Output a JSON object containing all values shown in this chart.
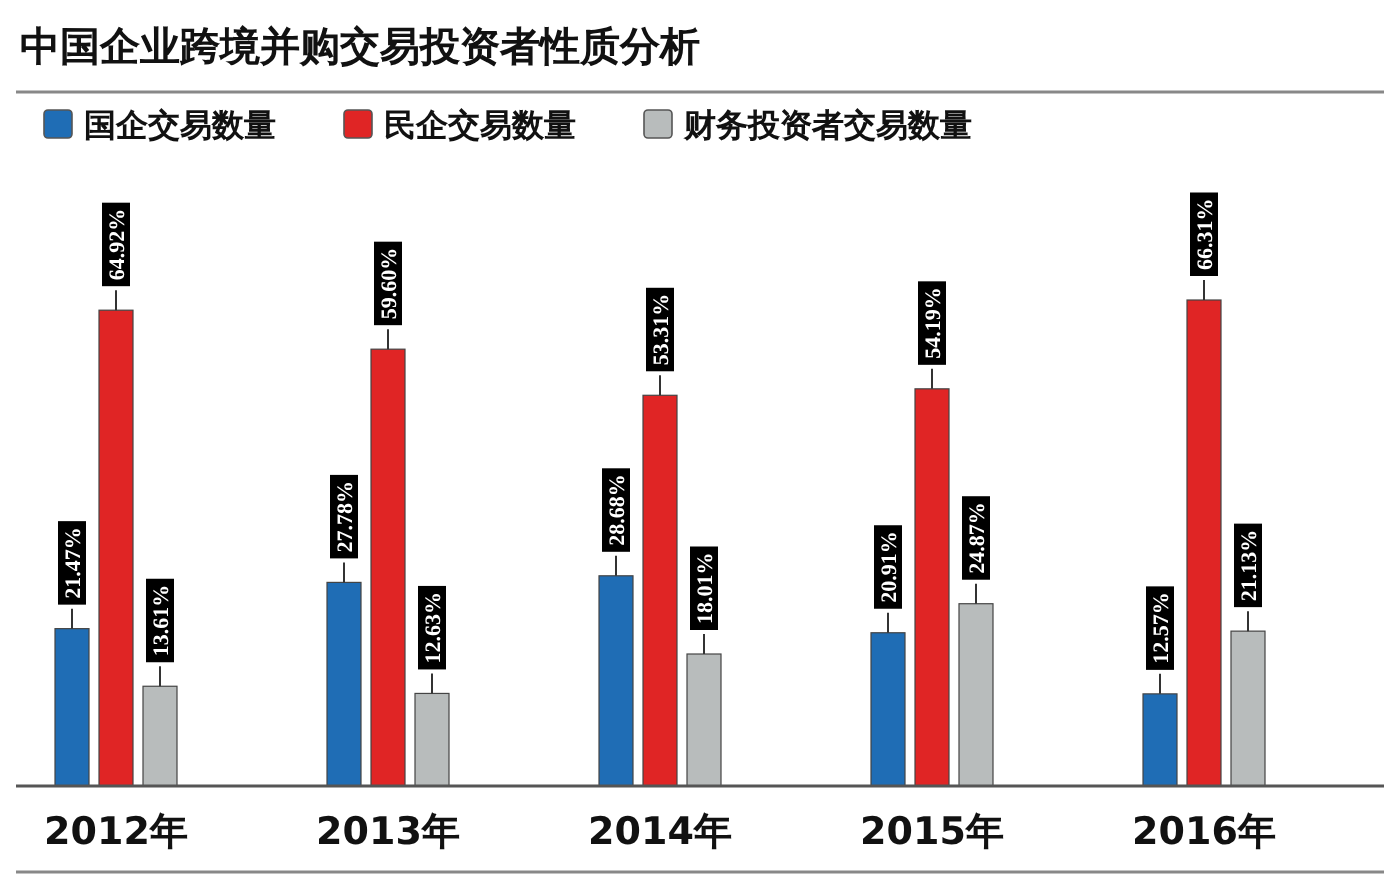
{
  "chart_data": {
    "type": "bar",
    "title": "中国企业跨境并购交易投资者性质分析",
    "categories": [
      "2012年",
      "2013年",
      "2014年",
      "2015年",
      "2016年"
    ],
    "series": [
      {
        "name": "国企交易数量",
        "color": "#1f6db5",
        "values": [
          21.47,
          27.78,
          28.68,
          20.91,
          12.57
        ],
        "value_labels": [
          "21.47%",
          "27.78%",
          "28.68%",
          "20.91%",
          "12.57%"
        ]
      },
      {
        "name": "民企交易数量",
        "color": "#e02525",
        "values": [
          64.92,
          59.6,
          53.31,
          54.19,
          66.31
        ],
        "value_labels": [
          "64.92%",
          "59.60%",
          "53.31%",
          "54.19%",
          "66.31%"
        ]
      },
      {
        "name": "财务投资者交易数量",
        "color": "#b8bcbc",
        "values": [
          13.61,
          12.63,
          18.01,
          24.87,
          21.13
        ],
        "value_labels": [
          "13.61%",
          "12.63%",
          "18.01%",
          "24.87%",
          "21.13%"
        ]
      }
    ],
    "legend": "top left"
  }
}
